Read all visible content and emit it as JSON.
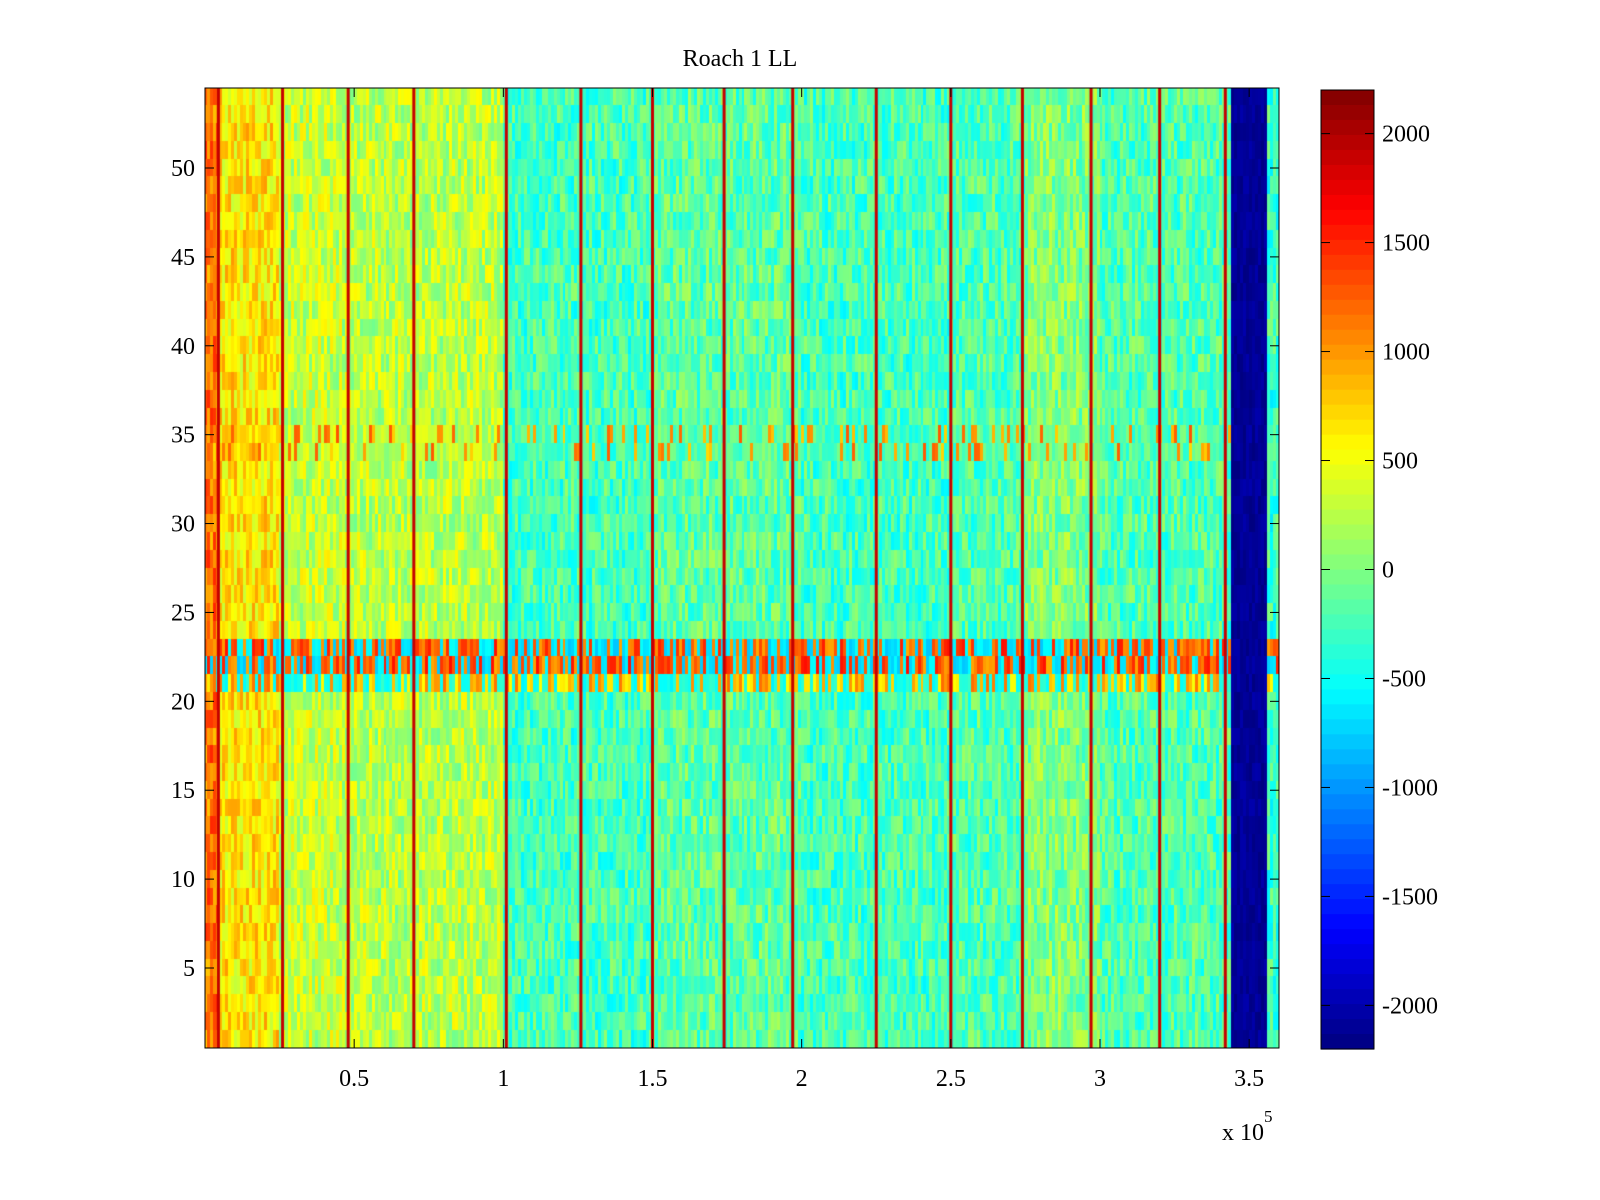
{
  "chart_data": {
    "type": "heatmap",
    "title": "Roach 1 LL",
    "xlabel": "",
    "ylabel": "",
    "x_range": [
      0,
      360000
    ],
    "y_range": [
      0.5,
      54.5
    ],
    "rows": 54,
    "xticks": [
      {
        "value": 50000,
        "label": "0.5"
      },
      {
        "value": 100000,
        "label": "1"
      },
      {
        "value": 150000,
        "label": "1.5"
      },
      {
        "value": 200000,
        "label": "2"
      },
      {
        "value": 250000,
        "label": "2.5"
      },
      {
        "value": 300000,
        "label": "3"
      },
      {
        "value": 350000,
        "label": "3.5"
      }
    ],
    "x_exponent_label": "x 10",
    "x_exponent": "5",
    "yticks": [
      {
        "value": 5,
        "label": "5"
      },
      {
        "value": 10,
        "label": "10"
      },
      {
        "value": 15,
        "label": "15"
      },
      {
        "value": 20,
        "label": "20"
      },
      {
        "value": 25,
        "label": "25"
      },
      {
        "value": 30,
        "label": "30"
      },
      {
        "value": 35,
        "label": "35"
      },
      {
        "value": 40,
        "label": "40"
      },
      {
        "value": 45,
        "label": "45"
      },
      {
        "value": 50,
        "label": "50"
      }
    ],
    "colorbar": {
      "colormap": "jet",
      "range": [
        -2200,
        2200
      ],
      "ticks": [
        {
          "value": 2000,
          "label": "2000"
        },
        {
          "value": 1500,
          "label": "1500"
        },
        {
          "value": 1000,
          "label": "1000"
        },
        {
          "value": 500,
          "label": "500"
        },
        {
          "value": 0,
          "label": "0"
        },
        {
          "value": -500,
          "label": "-500"
        },
        {
          "value": -1000,
          "label": "-1000"
        },
        {
          "value": -1500,
          "label": "-1500"
        },
        {
          "value": -2000,
          "label": "-2000"
        }
      ]
    },
    "structure": {
      "background_level_segments": [
        {
          "x_start": 0,
          "x_end": 5000,
          "value": 1150
        },
        {
          "x_start": 5000,
          "x_end": 25000,
          "value": 650
        },
        {
          "x_start": 25000,
          "x_end": 48000,
          "value": 300
        },
        {
          "x_start": 48000,
          "x_end": 100000,
          "value": 250
        },
        {
          "x_start": 100000,
          "x_end": 150000,
          "value": -250
        },
        {
          "x_start": 150000,
          "x_end": 200000,
          "value": -150
        },
        {
          "x_start": 200000,
          "x_end": 250000,
          "value": -250
        },
        {
          "x_start": 250000,
          "x_end": 275000,
          "value": -200
        },
        {
          "x_start": 275000,
          "x_end": 300000,
          "value": 0
        },
        {
          "x_start": 300000,
          "x_end": 344000,
          "value": -200
        },
        {
          "x_start": 344000,
          "x_end": 356000,
          "value": -2100
        },
        {
          "x_start": 356000,
          "x_end": 360000,
          "value": -300
        }
      ],
      "vertical_stripes_x": [
        4500,
        26000,
        48000,
        70000,
        101000,
        126000,
        150000,
        174000,
        197000,
        225000,
        250000,
        274000,
        297000,
        320000,
        342000
      ],
      "vertical_stripe_value": 1900,
      "band_rows": [
        {
          "row_start": 22,
          "row_end": 23,
          "pattern": "alternating",
          "high": 1600,
          "low": -800
        },
        {
          "row_start": 21,
          "row_end": 21,
          "pattern": "alternating",
          "high": 1200,
          "low": -600
        },
        {
          "row_start": 34,
          "row_end": 35,
          "pattern": "sparse",
          "high": 1300,
          "low": -100
        }
      ]
    }
  }
}
